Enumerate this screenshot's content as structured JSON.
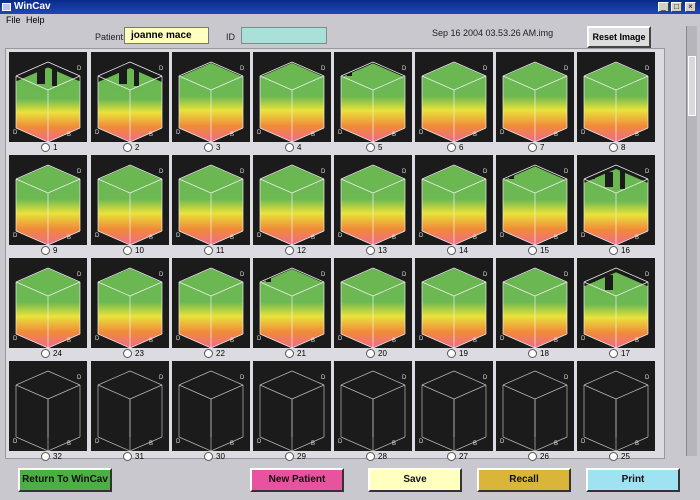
{
  "window": {
    "title": "WinCav",
    "controls": {
      "minimize": "_",
      "maximize": "□",
      "close": "×"
    }
  },
  "menu": {
    "items": [
      "File",
      "Help"
    ]
  },
  "header": {
    "patient_label": "Patient:",
    "patient_value": "joanne mace",
    "id_label": "ID",
    "id_value": "",
    "file_label": "Sep 16 2004 03.53.26 AM.img",
    "reset_button": "Reset Image"
  },
  "tiles": [
    {
      "label": "1",
      "fill": 0.75,
      "kind": "filled",
      "gaps": 3
    },
    {
      "label": "2",
      "fill": 0.72,
      "kind": "filled",
      "gaps": 3
    },
    {
      "label": "3",
      "fill": 0.95,
      "kind": "filled",
      "gaps": 0
    },
    {
      "label": "4",
      "fill": 0.95,
      "kind": "filled",
      "gaps": 0
    },
    {
      "label": "5",
      "fill": 0.93,
      "kind": "filled",
      "gaps": 1
    },
    {
      "label": "6",
      "fill": 0.97,
      "kind": "filled",
      "gaps": 0
    },
    {
      "label": "7",
      "fill": 0.97,
      "kind": "filled",
      "gaps": 0
    },
    {
      "label": "8",
      "fill": 0.97,
      "kind": "filled",
      "gaps": 0
    },
    {
      "label": "9",
      "fill": 0.97,
      "kind": "filled",
      "gaps": 0
    },
    {
      "label": "10",
      "fill": 0.97,
      "kind": "filled",
      "gaps": 0
    },
    {
      "label": "11",
      "fill": 0.97,
      "kind": "filled",
      "gaps": 0
    },
    {
      "label": "12",
      "fill": 0.97,
      "kind": "filled",
      "gaps": 0
    },
    {
      "label": "13",
      "fill": 0.97,
      "kind": "filled",
      "gaps": 0
    },
    {
      "label": "14",
      "fill": 0.97,
      "kind": "filled",
      "gaps": 0
    },
    {
      "label": "15",
      "fill": 0.93,
      "kind": "filled",
      "gaps": 1
    },
    {
      "label": "16",
      "fill": 0.82,
      "kind": "filled",
      "gaps": 3
    },
    {
      "label": "24",
      "fill": 0.97,
      "kind": "filled",
      "gaps": 0
    },
    {
      "label": "23",
      "fill": 0.97,
      "kind": "filled",
      "gaps": 0
    },
    {
      "label": "22",
      "fill": 0.97,
      "kind": "filled",
      "gaps": 0
    },
    {
      "label": "21",
      "fill": 0.95,
      "kind": "filled",
      "gaps": 1
    },
    {
      "label": "20",
      "fill": 0.97,
      "kind": "filled",
      "gaps": 0
    },
    {
      "label": "19",
      "fill": 0.97,
      "kind": "filled",
      "gaps": 0
    },
    {
      "label": "18",
      "fill": 0.97,
      "kind": "filled",
      "gaps": 0
    },
    {
      "label": "17",
      "fill": 0.8,
      "kind": "filled",
      "gaps": 2
    },
    {
      "label": "32",
      "kind": "empty"
    },
    {
      "label": "31",
      "kind": "empty"
    },
    {
      "label": "30",
      "kind": "empty"
    },
    {
      "label": "29",
      "kind": "empty"
    },
    {
      "label": "28",
      "kind": "empty"
    },
    {
      "label": "27",
      "kind": "empty"
    },
    {
      "label": "26",
      "kind": "empty"
    },
    {
      "label": "25",
      "kind": "empty"
    }
  ],
  "tile_axis_letters": {
    "left": "D",
    "right": "D",
    "mid": "B"
  },
  "buttons": {
    "return": {
      "label": "Return To WinCav",
      "color": "#4caf44"
    },
    "new_patient": {
      "label": "New Patient",
      "color": "#e8539f"
    },
    "save": {
      "label": "Save",
      "color": "#ffffc0"
    },
    "recall": {
      "label": "Recall",
      "color": "#d9b53a"
    },
    "print": {
      "label": "Print",
      "color": "#9fe3f2"
    }
  },
  "colors": {
    "cube_top": "#6cb852",
    "cube_mid": "#e9e33a",
    "cube_low": "#f08a3a",
    "cube_bottom": "#f06a8a",
    "tile_bg": "#1b1b1b"
  }
}
